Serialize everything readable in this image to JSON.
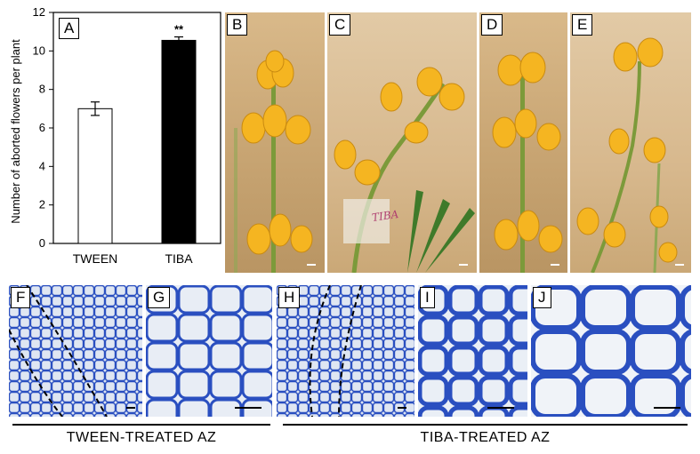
{
  "panels": {
    "A": "A",
    "B": "B",
    "C": "C",
    "D": "D",
    "E": "E",
    "F": "F",
    "G": "G",
    "H": "H",
    "I": "I",
    "J": "J"
  },
  "chart_data": {
    "type": "bar",
    "categories": [
      "TWEEN",
      "TIBA"
    ],
    "values": [
      7.0,
      10.55
    ],
    "errors": [
      0.35,
      0.18
    ],
    "bar_colors": [
      "#ffffff",
      "#000000"
    ],
    "ylabel": "Number of aborted flowers per plant",
    "ylim": [
      0,
      12
    ],
    "yticks": [
      0,
      2,
      4,
      6,
      8,
      10,
      12
    ],
    "annotations": [
      {
        "category": "TIBA",
        "text": "**"
      }
    ],
    "grid": false
  },
  "photo_text": {
    "C_tag": "TIBA"
  },
  "captions": {
    "tween": "TWEEN-TREATED  AZ",
    "tiba": "TIBA-TREATED  AZ"
  },
  "colors": {
    "flower": "#f5b521",
    "stem": "#7c9a3a",
    "cell_wall": "#2a4fc0"
  }
}
